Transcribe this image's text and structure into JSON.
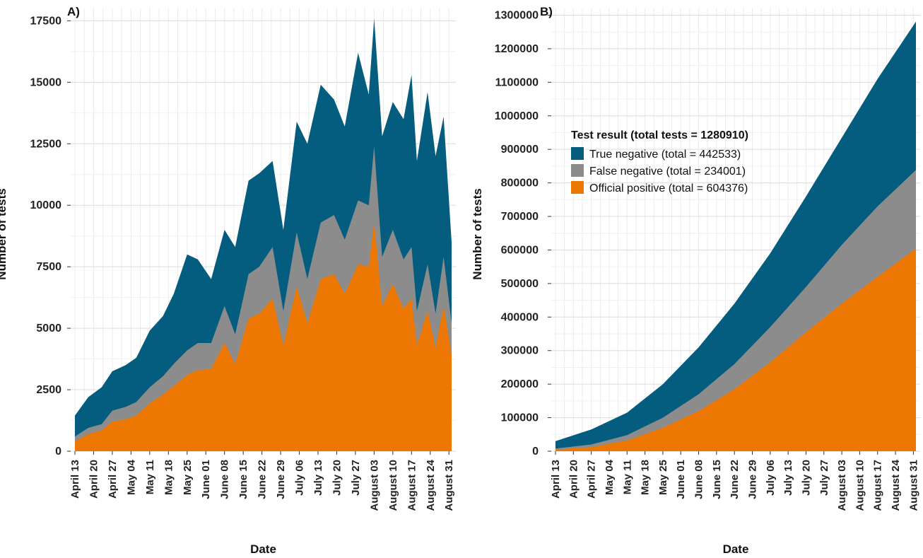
{
  "chart_data": [
    {
      "panel": "A)",
      "type": "area",
      "stacked": true,
      "xlabel": "Date",
      "ylabel": "Number of tests",
      "ylim": [
        0,
        18000
      ],
      "yticks": [
        0,
        2500,
        5000,
        7500,
        10000,
        12500,
        15000,
        17500
      ],
      "x_tick_labels": [
        "April 13",
        "April 20",
        "April 27",
        "May 04",
        "May 11",
        "May 18",
        "May 25",
        "June 01",
        "June 08",
        "June 15",
        "June 22",
        "June 29",
        "July 06",
        "July 13",
        "July 20",
        "July 27",
        "August 03",
        "August 10",
        "August 17",
        "August 24",
        "August 31"
      ],
      "x_start_date": "2020-04-13",
      "grid": true,
      "series": [
        {
          "key": "official_positive",
          "color": "#ED7703",
          "points": [
            [
              "2020-04-13",
              400
            ],
            [
              "2020-04-18",
              700
            ],
            [
              "2020-04-23",
              850
            ],
            [
              "2020-04-27",
              1200
            ],
            [
              "2020-05-02",
              1300
            ],
            [
              "2020-05-06",
              1450
            ],
            [
              "2020-05-11",
              1950
            ],
            [
              "2020-05-16",
              2300
            ],
            [
              "2020-05-20",
              2650
            ],
            [
              "2020-05-25",
              3100
            ],
            [
              "2020-05-29",
              3300
            ],
            [
              "2020-06-03",
              3350
            ],
            [
              "2020-06-08",
              4400
            ],
            [
              "2020-06-12",
              3550
            ],
            [
              "2020-06-17",
              5400
            ],
            [
              "2020-06-21",
              5600
            ],
            [
              "2020-06-26",
              6200
            ],
            [
              "2020-06-30",
              4300
            ],
            [
              "2020-07-05",
              6700
            ],
            [
              "2020-07-09",
              5200
            ],
            [
              "2020-07-14",
              7000
            ],
            [
              "2020-07-19",
              7200
            ],
            [
              "2020-07-23",
              6400
            ],
            [
              "2020-07-28",
              7600
            ],
            [
              "2020-08-01",
              7500
            ],
            [
              "2020-08-03",
              9300
            ],
            [
              "2020-08-06",
              5900
            ],
            [
              "2020-08-10",
              6800
            ],
            [
              "2020-08-14",
              5800
            ],
            [
              "2020-08-17",
              6200
            ],
            [
              "2020-08-19",
              4300
            ],
            [
              "2020-08-23",
              5700
            ],
            [
              "2020-08-26",
              4200
            ],
            [
              "2020-08-29",
              5900
            ],
            [
              "2020-09-01",
              3900
            ]
          ]
        },
        {
          "key": "false_negative",
          "color": "#8C8C8C",
          "points": [
            [
              "2020-04-13",
              600
            ],
            [
              "2020-04-18",
              950
            ],
            [
              "2020-04-23",
              1100
            ],
            [
              "2020-04-27",
              1650
            ],
            [
              "2020-05-02",
              1800
            ],
            [
              "2020-05-06",
              2000
            ],
            [
              "2020-05-11",
              2600
            ],
            [
              "2020-05-16",
              3050
            ],
            [
              "2020-05-20",
              3550
            ],
            [
              "2020-05-25",
              4100
            ],
            [
              "2020-05-29",
              4400
            ],
            [
              "2020-06-03",
              4400
            ],
            [
              "2020-06-08",
              5900
            ],
            [
              "2020-06-12",
              4750
            ],
            [
              "2020-06-17",
              7200
            ],
            [
              "2020-06-21",
              7500
            ],
            [
              "2020-06-26",
              8300
            ],
            [
              "2020-06-30",
              5700
            ],
            [
              "2020-07-05",
              8900
            ],
            [
              "2020-07-09",
              7000
            ],
            [
              "2020-07-14",
              9300
            ],
            [
              "2020-07-19",
              9600
            ],
            [
              "2020-07-23",
              8600
            ],
            [
              "2020-07-28",
              10200
            ],
            [
              "2020-08-01",
              10000
            ],
            [
              "2020-08-03",
              12400
            ],
            [
              "2020-08-06",
              7900
            ],
            [
              "2020-08-10",
              9000
            ],
            [
              "2020-08-14",
              7800
            ],
            [
              "2020-08-17",
              8300
            ],
            [
              "2020-08-19",
              5700
            ],
            [
              "2020-08-23",
              7600
            ],
            [
              "2020-08-26",
              5600
            ],
            [
              "2020-08-29",
              7900
            ],
            [
              "2020-09-01",
              5200
            ]
          ]
        },
        {
          "key": "true_negative",
          "color": "#045D7E",
          "points": [
            [
              "2020-04-13",
              1450
            ],
            [
              "2020-04-18",
              2200
            ],
            [
              "2020-04-23",
              2600
            ],
            [
              "2020-04-27",
              3250
            ],
            [
              "2020-05-02",
              3500
            ],
            [
              "2020-05-06",
              3800
            ],
            [
              "2020-05-11",
              4900
            ],
            [
              "2020-05-16",
              5500
            ],
            [
              "2020-05-20",
              6400
            ],
            [
              "2020-05-25",
              8000
            ],
            [
              "2020-05-29",
              7800
            ],
            [
              "2020-06-03",
              7000
            ],
            [
              "2020-06-08",
              9000
            ],
            [
              "2020-06-12",
              8300
            ],
            [
              "2020-06-17",
              11000
            ],
            [
              "2020-06-21",
              11300
            ],
            [
              "2020-06-26",
              11800
            ],
            [
              "2020-06-30",
              9000
            ],
            [
              "2020-07-05",
              13400
            ],
            [
              "2020-07-09",
              12500
            ],
            [
              "2020-07-14",
              14900
            ],
            [
              "2020-07-19",
              14300
            ],
            [
              "2020-07-23",
              13200
            ],
            [
              "2020-07-28",
              16200
            ],
            [
              "2020-08-01",
              14500
            ],
            [
              "2020-08-03",
              17600
            ],
            [
              "2020-08-06",
              12800
            ],
            [
              "2020-08-10",
              14200
            ],
            [
              "2020-08-14",
              13500
            ],
            [
              "2020-08-17",
              15300
            ],
            [
              "2020-08-19",
              11800
            ],
            [
              "2020-08-23",
              14600
            ],
            [
              "2020-08-26",
              12000
            ],
            [
              "2020-08-29",
              13600
            ],
            [
              "2020-09-01",
              8500
            ]
          ]
        }
      ]
    },
    {
      "panel": "B)",
      "type": "area",
      "stacked": true,
      "xlabel": "Date",
      "ylabel": "Number of tests",
      "ylim": [
        0,
        1320000
      ],
      "yticks": [
        0,
        100000,
        200000,
        300000,
        400000,
        500000,
        600000,
        700000,
        800000,
        900000,
        1000000,
        1100000,
        1200000,
        1300000
      ],
      "x_tick_labels": [
        "April 13",
        "April 20",
        "April 27",
        "May 04",
        "May 11",
        "May 18",
        "May 25",
        "June 01",
        "June 08",
        "June 15",
        "June 22",
        "June 29",
        "July 06",
        "July 13",
        "July 20",
        "July 27",
        "August 03",
        "August 10",
        "August 17",
        "August 24",
        "August 31"
      ],
      "x_start_date": "2020-04-13",
      "grid": true,
      "legend": {
        "title": "Test result (total tests = 1280910)",
        "placement": "top-left",
        "entries": [
          {
            "label": "True negative (total = 442533)",
            "color": "#045D7E"
          },
          {
            "label": "False negative (total = 234001)",
            "color": "#8C8C8C"
          },
          {
            "label": "Official positive (total = 604376)",
            "color": "#ED7703"
          }
        ]
      },
      "series": [
        {
          "key": "official_positive",
          "color": "#ED7703",
          "points": [
            [
              "2020-04-13",
              5000
            ],
            [
              "2020-04-27",
              12000
            ],
            [
              "2020-05-11",
              32000
            ],
            [
              "2020-05-25",
              70000
            ],
            [
              "2020-06-08",
              120000
            ],
            [
              "2020-06-22",
              185000
            ],
            [
              "2020-07-06",
              265000
            ],
            [
              "2020-07-20",
              355000
            ],
            [
              "2020-08-03",
              440000
            ],
            [
              "2020-08-17",
              520000
            ],
            [
              "2020-09-01",
              604376
            ]
          ]
        },
        {
          "key": "false_negative",
          "color": "#8C8C8C",
          "points": [
            [
              "2020-04-13",
              8000
            ],
            [
              "2020-04-27",
              20000
            ],
            [
              "2020-05-11",
              48000
            ],
            [
              "2020-05-25",
              100000
            ],
            [
              "2020-06-08",
              170000
            ],
            [
              "2020-06-22",
              260000
            ],
            [
              "2020-07-06",
              370000
            ],
            [
              "2020-07-20",
              490000
            ],
            [
              "2020-08-03",
              615000
            ],
            [
              "2020-08-17",
              730000
            ],
            [
              "2020-09-01",
              838377
            ]
          ]
        },
        {
          "key": "true_negative",
          "color": "#045D7E",
          "points": [
            [
              "2020-04-13",
              30000
            ],
            [
              "2020-04-27",
              65000
            ],
            [
              "2020-05-11",
              115000
            ],
            [
              "2020-05-25",
              200000
            ],
            [
              "2020-06-08",
              310000
            ],
            [
              "2020-06-22",
              440000
            ],
            [
              "2020-07-06",
              590000
            ],
            [
              "2020-07-20",
              760000
            ],
            [
              "2020-08-03",
              935000
            ],
            [
              "2020-08-17",
              1110000
            ],
            [
              "2020-09-01",
              1280910
            ]
          ]
        }
      ]
    }
  ]
}
